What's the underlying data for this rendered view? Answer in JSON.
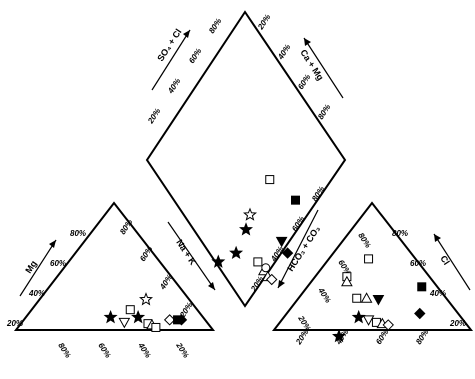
{
  "chart_data": {
    "type": "scatter",
    "diagram": "piper",
    "title": "",
    "axis_labels": {
      "diamond_left": "SO₄ + Cl",
      "diamond_right": "Ca + Mg",
      "diamond_lower_left": "HCO₃ + CO₃",
      "diamond_lower_right": "Na + K",
      "cation_left": "Mg",
      "anion_right": "Cl"
    },
    "tick_labels": {
      "diamond_upper_left": [
        "20%",
        "40%",
        "60%",
        "80%"
      ],
      "diamond_upper_right": [
        "20%",
        "40%",
        "60%",
        "80%"
      ],
      "diamond_lower_right": [
        "20%",
        "40%",
        "60%",
        "80%"
      ],
      "cation_left": [
        "20%",
        "40%",
        "60%",
        "80%"
      ],
      "cation_right": [
        "20%",
        "40%",
        "60%",
        "80%"
      ],
      "cation_bottom": [
        "80%",
        "60%",
        "40%",
        "20%"
      ],
      "anion_left": [
        "20%",
        "40%",
        "60%",
        "80%"
      ],
      "anion_right": [
        "20%",
        "40%",
        "60%",
        "80%"
      ],
      "anion_bottom": [
        "20%",
        "40%",
        "60%",
        "80%"
      ]
    },
    "marker_types": [
      "open-square",
      "open-star",
      "filled-star",
      "open-triangle",
      "open-down-triangle",
      "filled-square",
      "filled-down-triangle",
      "filled-diamond",
      "open-diamond",
      "open-circle"
    ],
    "points": {
      "diamond": [
        {
          "marker": "open-square",
          "x": 0.62,
          "y": 0.43
        },
        {
          "marker": "filled-square",
          "x": 0.75,
          "y": 0.36
        },
        {
          "marker": "open-star",
          "x": 0.52,
          "y": 0.31
        },
        {
          "marker": "filled-star",
          "x": 0.5,
          "y": 0.26
        },
        {
          "marker": "filled-star",
          "x": 0.36,
          "y": 0.15
        },
        {
          "marker": "filled-star",
          "x": 0.45,
          "y": 0.18
        },
        {
          "marker": "filled-down-triangle",
          "x": 0.68,
          "y": 0.22
        },
        {
          "marker": "filled-diamond",
          "x": 0.71,
          "y": 0.18
        },
        {
          "marker": "open-square",
          "x": 0.56,
          "y": 0.15
        },
        {
          "marker": "open-triangle",
          "x": 0.59,
          "y": 0.12
        },
        {
          "marker": "open-triangle",
          "x": 0.61,
          "y": 0.1
        },
        {
          "marker": "open-diamond",
          "x": 0.63,
          "y": 0.09
        },
        {
          "marker": "open-circle",
          "x": 0.6,
          "y": 0.13
        }
      ],
      "cation": [
        {
          "marker": "open-star",
          "x": 0.66,
          "y": 0.24
        },
        {
          "marker": "open-square",
          "x": 0.58,
          "y": 0.16
        },
        {
          "marker": "filled-star",
          "x": 0.48,
          "y": 0.1
        },
        {
          "marker": "open-down-triangle",
          "x": 0.55,
          "y": 0.06
        },
        {
          "marker": "filled-star",
          "x": 0.62,
          "y": 0.1
        },
        {
          "marker": "open-square",
          "x": 0.67,
          "y": 0.05
        },
        {
          "marker": "open-triangle",
          "x": 0.69,
          "y": 0.04
        },
        {
          "marker": "open-square",
          "x": 0.71,
          "y": 0.02
        },
        {
          "marker": "open-diamond",
          "x": 0.78,
          "y": 0.08
        },
        {
          "marker": "filled-square",
          "x": 0.82,
          "y": 0.08
        },
        {
          "marker": "filled-diamond",
          "x": 0.84,
          "y": 0.08
        }
      ],
      "anion": [
        {
          "marker": "open-square",
          "x": 0.48,
          "y": 0.56
        },
        {
          "marker": "open-square",
          "x": 0.37,
          "y": 0.42
        },
        {
          "marker": "open-triangle",
          "x": 0.37,
          "y": 0.38
        },
        {
          "marker": "open-square",
          "x": 0.42,
          "y": 0.25
        },
        {
          "marker": "open-triangle",
          "x": 0.47,
          "y": 0.25
        },
        {
          "marker": "filled-down-triangle",
          "x": 0.53,
          "y": 0.24
        },
        {
          "marker": "filled-square",
          "x": 0.75,
          "y": 0.34
        },
        {
          "marker": "filled-diamond",
          "x": 0.74,
          "y": 0.13
        },
        {
          "marker": "filled-star",
          "x": 0.43,
          "y": 0.1
        },
        {
          "marker": "open-down-triangle",
          "x": 0.48,
          "y": 0.08
        },
        {
          "marker": "open-square",
          "x": 0.52,
          "y": 0.06
        },
        {
          "marker": "open-triangle",
          "x": 0.55,
          "y": 0.05
        },
        {
          "marker": "open-diamond",
          "x": 0.58,
          "y": 0.04
        },
        {
          "marker": "filled-star",
          "x": 0.33,
          "y": -0.05
        }
      ]
    },
    "grid": false,
    "legend": "none"
  }
}
